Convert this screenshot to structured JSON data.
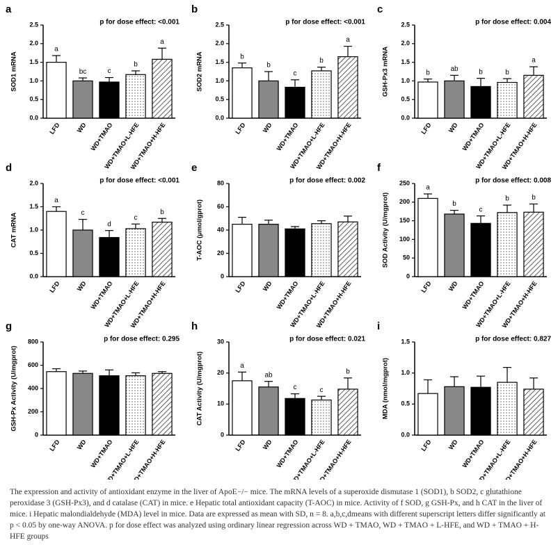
{
  "chart_data": [
    {
      "type": "bar",
      "panel": "a",
      "annotation": "p for dose effect: <0.001",
      "ylabel": "SOD1 mRNA",
      "categories": [
        "LFD",
        "WD",
        "WD+TMAO",
        "WD+TMAO+L-HFE",
        "WD+TMAO+H-HFE"
      ],
      "values": [
        1.5,
        1.0,
        0.97,
        1.17,
        1.58
      ],
      "errors": [
        0.18,
        0.08,
        0.12,
        0.1,
        0.3
      ],
      "letters": [
        "a",
        "bc",
        "c",
        "b",
        "a"
      ],
      "colors": [
        "#ffffff",
        "#888888",
        "#000000",
        "dots",
        "hatch"
      ],
      "ylim": [
        0,
        2.5
      ],
      "yticks": [
        {
          "value": 0,
          "label": "0.0"
        },
        {
          "value": 0.5,
          "label": "0.5"
        },
        {
          "value": 1,
          "label": "1.0"
        },
        {
          "value": 1.5,
          "label": "1.5"
        },
        {
          "value": 2,
          "label": "2.0"
        },
        {
          "value": 2.5,
          "label": "2.5"
        }
      ]
    },
    {
      "type": "bar",
      "panel": "b",
      "annotation": "p for dose effect: <0.001",
      "ylabel": "SOD2 mRNA",
      "categories": [
        "LFD",
        "WD",
        "WD+TMAO",
        "WD+TMAO+L-HFE",
        "WD+TMAO+H-HFE"
      ],
      "values": [
        1.35,
        1.0,
        0.83,
        1.27,
        1.65
      ],
      "errors": [
        0.13,
        0.25,
        0.2,
        0.1,
        0.28
      ],
      "letters": [
        "b",
        "b",
        "c",
        "b",
        "a"
      ],
      "colors": [
        "#ffffff",
        "#888888",
        "#000000",
        "dots",
        "hatch"
      ],
      "ylim": [
        0,
        2.5
      ],
      "yticks": [
        {
          "value": 0,
          "label": "0.0"
        },
        {
          "value": 0.5,
          "label": "0.5"
        },
        {
          "value": 1,
          "label": "1.0"
        },
        {
          "value": 1.5,
          "label": "1.5"
        },
        {
          "value": 2,
          "label": "2.0"
        },
        {
          "value": 2.5,
          "label": "2.5"
        }
      ]
    },
    {
      "type": "bar",
      "panel": "c",
      "annotation": "p for dose effect: 0.004",
      "ylabel": "GSH-Px3 mRNA",
      "categories": [
        "LFD",
        "WD",
        "WD+TMAO",
        "WD+TMAO+L-HFE",
        "WD+TMAO+H-HFE"
      ],
      "values": [
        0.97,
        1.0,
        0.85,
        0.96,
        1.15
      ],
      "errors": [
        0.08,
        0.15,
        0.22,
        0.1,
        0.23
      ],
      "letters": [
        "b",
        "ab",
        "b",
        "b",
        "a"
      ],
      "colors": [
        "#ffffff",
        "#888888",
        "#000000",
        "dots",
        "hatch"
      ],
      "ylim": [
        0,
        2.5
      ],
      "yticks": [
        {
          "value": 0,
          "label": "0.0"
        },
        {
          "value": 0.5,
          "label": "0.5"
        },
        {
          "value": 1,
          "label": "1.0"
        },
        {
          "value": 1.5,
          "label": "1.5"
        },
        {
          "value": 2,
          "label": "2.0"
        },
        {
          "value": 2.5,
          "label": "2.5"
        }
      ]
    },
    {
      "type": "bar",
      "panel": "d",
      "annotation": "p for dose effect: <0.001",
      "ylabel": "CAT mRNA",
      "categories": [
        "LFD",
        "WD",
        "WD+TMAO",
        "WD+TMAO+L-HFE",
        "WD+TMAO+H-HFE"
      ],
      "values": [
        1.4,
        1.0,
        0.84,
        1.03,
        1.17
      ],
      "errors": [
        0.1,
        0.23,
        0.15,
        0.1,
        0.08
      ],
      "letters": [
        "a",
        "c",
        "d",
        "c",
        "b"
      ],
      "colors": [
        "#ffffff",
        "#888888",
        "#000000",
        "dots",
        "hatch"
      ],
      "ylim": [
        0,
        2
      ],
      "yticks": [
        {
          "value": 0,
          "label": "0.0"
        },
        {
          "value": 0.5,
          "label": "0.5"
        },
        {
          "value": 1,
          "label": "1.0"
        },
        {
          "value": 1.5,
          "label": "1.5"
        },
        {
          "value": 2,
          "label": "2.0"
        }
      ]
    },
    {
      "type": "bar",
      "panel": "e",
      "annotation": "p for dose effect: 0.002",
      "ylabel": "T-AOC (μmol/gprot)",
      "categories": [
        "LFD",
        "WD",
        "WD+TMAO",
        "WD+TMAO+L-HFE",
        "WD+TMAO+H-HFE"
      ],
      "values": [
        45,
        45,
        41,
        45.5,
        47
      ],
      "errors": [
        6,
        3.5,
        2,
        2.5,
        5
      ],
      "colors": [
        "#ffffff",
        "#888888",
        "#000000",
        "dots",
        "hatch"
      ],
      "ylim": [
        0,
        80
      ],
      "yticks": [
        0,
        20,
        40,
        60,
        80
      ]
    },
    {
      "type": "bar",
      "panel": "f",
      "annotation": "p for dose effect: 0.008",
      "ylabel": "SOD Activity (U/mgprot)",
      "categories": [
        "LFD",
        "WD",
        "WD+TMAO",
        "WD+TMAO+L-HFE",
        "WD+TMAO+H-HFE"
      ],
      "values": [
        210,
        168,
        143,
        172,
        173
      ],
      "errors": [
        12,
        10,
        20,
        20,
        22
      ],
      "letters": [
        "a",
        "b",
        "c",
        "b",
        "b"
      ],
      "colors": [
        "#ffffff",
        "#888888",
        "#000000",
        "dots",
        "hatch"
      ],
      "ylim": [
        0,
        250
      ],
      "yticks": [
        0,
        50,
        100,
        150,
        200,
        250
      ]
    },
    {
      "type": "bar",
      "panel": "g",
      "annotation": "p for dose effect: 0.295",
      "ylabel": "GSH-Px Activity (U/mgprot)",
      "categories": [
        "LFD",
        "WD",
        "WD+TMAO",
        "WD+TMAO+L-HFE",
        "WD+TMAO+H-HFE"
      ],
      "values": [
        545,
        530,
        510,
        510,
        530
      ],
      "errors": [
        25,
        20,
        50,
        25,
        15
      ],
      "colors": [
        "#ffffff",
        "#888888",
        "#000000",
        "dots",
        "hatch"
      ],
      "ylim": [
        0,
        800
      ],
      "yticks": [
        0,
        200,
        400,
        600,
        800
      ]
    },
    {
      "type": "bar",
      "panel": "h",
      "annotation": "p for dose effect: 0.021",
      "ylabel": "CAT Activity (U/mgprot)",
      "categories": [
        "LFD",
        "WD",
        "WD+TMAO",
        "WD+TMAO+L-HFE",
        "WD+TMAO+H-HFE"
      ],
      "values": [
        17.5,
        15.5,
        11.8,
        11.3,
        14.8
      ],
      "errors": [
        2.8,
        1.8,
        1.5,
        1.2,
        3.6
      ],
      "letters": [
        "a",
        "ab",
        "c",
        "c",
        "b"
      ],
      "colors": [
        "#ffffff",
        "#888888",
        "#000000",
        "dots",
        "hatch"
      ],
      "ylim": [
        0,
        30
      ],
      "yticks": [
        0,
        10,
        20,
        30
      ]
    },
    {
      "type": "bar",
      "panel": "i",
      "annotation": "p for dose effect: 0.827",
      "ylabel": "MDA (nmol/mgprot)",
      "categories": [
        "LFD",
        "WD",
        "WD+TMAO",
        "WD+TMAO+L-HFE",
        "WD+TMAO+H-HFE"
      ],
      "values": [
        0.67,
        0.78,
        0.77,
        0.85,
        0.74
      ],
      "errors": [
        0.22,
        0.16,
        0.18,
        0.24,
        0.18
      ],
      "colors": [
        "#ffffff",
        "#888888",
        "#000000",
        "dots",
        "hatch"
      ],
      "ylim": [
        0,
        1.5
      ],
      "yticks": [
        {
          "value": 0,
          "label": "0.0"
        },
        {
          "value": 0.5,
          "label": "0.5"
        },
        {
          "value": 1,
          "label": "1.0"
        },
        {
          "value": 1.5,
          "label": "1.5"
        }
      ]
    }
  ],
  "caption": "The expression and activity of antioxidant enzyme in the liver of ApoE−/− mice. The mRNA levels of a superoxide dismutase 1 (SOD1), b SOD2, c glutathione peroxidase 3 (GSH-Px3), and d catalase (CAT) in mice. e Hepatic total antioxidant capacity (T-AOC) in mice. Activity of f SOD, g GSH-Px, and h CAT in the liver of mice. i Hepatic malondialdehyde (MDA) level in mice. Data are expressed as mean with SD, n = 8. a,b,c,dmeans with different superscript letters differ significantly at p < 0.05 by one-way ANOVA. p for dose effect was analyzed using ordinary linear regression across WD + TMAO, WD + TMAO + L-HFE, and WD + TMAO + H-HFE groups"
}
